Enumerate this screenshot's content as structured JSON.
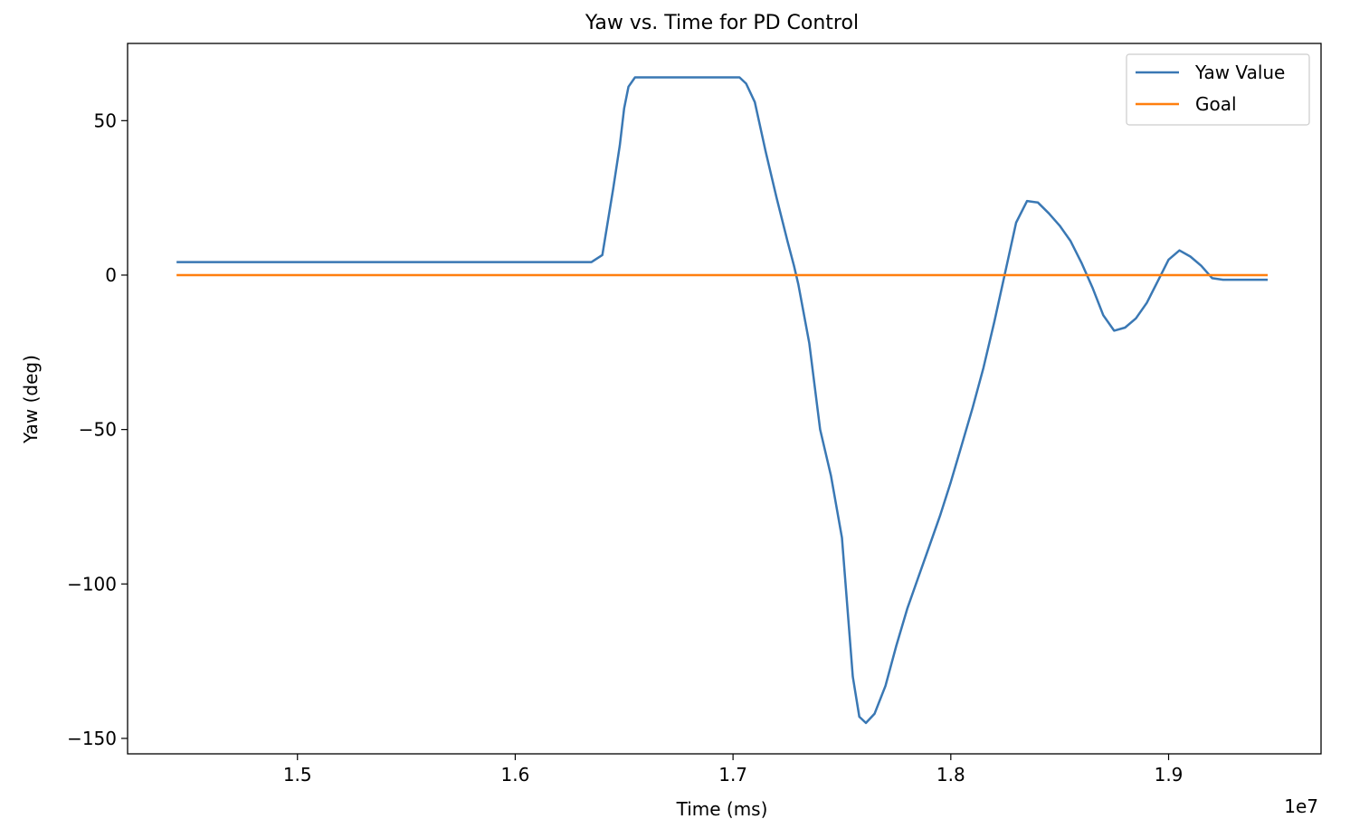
{
  "chart_data": {
    "type": "line",
    "title": "Yaw vs. Time for PD Control",
    "xlabel": "Time (ms)",
    "ylabel": "Yaw (deg)",
    "x_offset_label": "1e7",
    "xlim": [
      14220000,
      19700000
    ],
    "ylim": [
      -155,
      75
    ],
    "xticks": [
      15000000,
      16000000,
      17000000,
      18000000,
      19000000
    ],
    "xtick_labels": [
      "1.5",
      "1.6",
      "1.7",
      "1.8",
      "1.9"
    ],
    "yticks": [
      50,
      0,
      -50,
      -100,
      -150
    ],
    "ytick_labels": [
      "50",
      "0",
      "−50",
      "−100",
      "−150"
    ],
    "grid": false,
    "legend_position": "top-right",
    "series": [
      {
        "name": "Yaw Value",
        "color": "#3a78b4",
        "x": [
          14450000,
          16350000,
          16400000,
          16450000,
          16480000,
          16500000,
          16520000,
          16550000,
          17000000,
          17030000,
          17060000,
          17100000,
          17150000,
          17200000,
          17250000,
          17280000,
          17300000,
          17350000,
          17400000,
          17450000,
          17500000,
          17530000,
          17550000,
          17580000,
          17610000,
          17650000,
          17700000,
          17750000,
          17800000,
          17850000,
          17900000,
          17950000,
          18000000,
          18050000,
          18100000,
          18150000,
          18200000,
          18250000,
          18300000,
          18350000,
          18400000,
          18450000,
          18500000,
          18550000,
          18600000,
          18650000,
          18700000,
          18750000,
          18800000,
          18850000,
          18900000,
          18950000,
          19000000,
          19050000,
          19100000,
          19150000,
          19200000,
          19250000,
          19300000,
          19350000,
          19400000,
          19450000
        ],
        "y": [
          4.2,
          4.2,
          6.5,
          28,
          42,
          54,
          61,
          64,
          64,
          64,
          62,
          56,
          40,
          25,
          11,
          3,
          -3,
          -22,
          -50,
          -65,
          -85,
          -112,
          -130,
          -143,
          -145,
          -142,
          -133,
          -120,
          -108,
          -98,
          -88,
          -78,
          -67,
          -55,
          -43,
          -30,
          -15,
          1,
          17,
          24,
          23.5,
          20,
          16,
          11,
          4,
          -4,
          -13,
          -18,
          -17,
          -14,
          -9,
          -2,
          5,
          8,
          6,
          3,
          -1,
          -1.5,
          -1.5,
          -1.5,
          -1.5,
          -1.5
        ]
      },
      {
        "name": "Goal",
        "color": "#ff7f0e",
        "x": [
          14450000,
          19450000
        ],
        "y": [
          0,
          0
        ]
      }
    ]
  }
}
